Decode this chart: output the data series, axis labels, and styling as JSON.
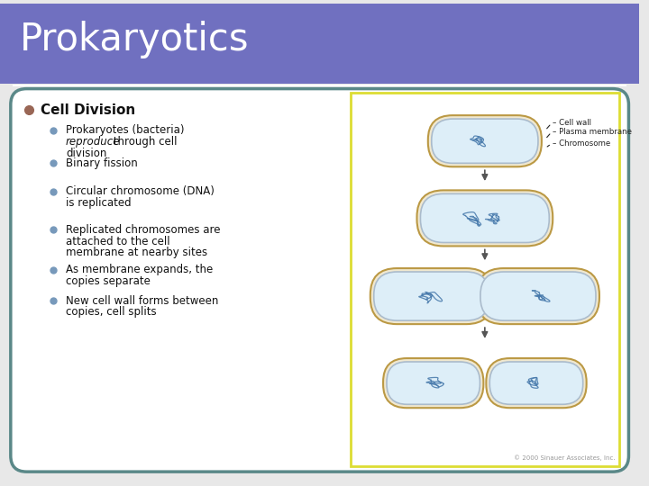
{
  "title": "Prokaryotics",
  "title_bg_color": "#7070c0",
  "title_text_color": "#ffffff",
  "slide_bg_color": "#e8e8e8",
  "content_bg_color": "#ffffff",
  "border_color": "#5a8888",
  "main_bullet": "Cell Division",
  "main_bullet_color": "#996655",
  "sub_bullet_color": "#7799bb",
  "sub_bullets": [
    "Prokaryotes (bacteria)\nreproduce through cell\ndivision",
    "Binary fission",
    "Circular chromosome (DNA)\nis replicated",
    "Replicated chromosomes are\nattached to the cell\nmembrane at nearby sites",
    "As membrane expands, the\ncopies separate",
    "New cell wall forms between\ncopies, cell splits"
  ],
  "image_border_color": "#dddd33",
  "cell_fill": "#ddeef8",
  "cell_inner_edge": "#aabbcc",
  "cell_outer_edge": "#bb9944",
  "chrom_color": "#4477aa",
  "text_color": "#111111",
  "label_color": "#222222",
  "arrow_color": "#555555",
  "copyright": "© 2000 Sinauer Associates, Inc."
}
